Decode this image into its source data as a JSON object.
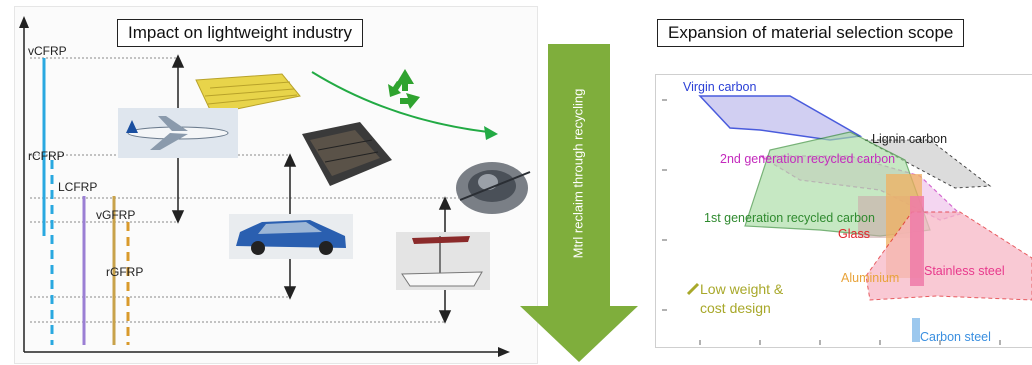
{
  "left_panel": {
    "title": "Impact on lightweight industry",
    "levels": [
      {
        "name": "vCFRP",
        "color": "#29a8e0"
      },
      {
        "name": "rCFRP",
        "color": "#29a8e0"
      },
      {
        "name": "LCFRP",
        "color": "#9b7fd4"
      },
      {
        "name": "vGFRP",
        "color": "#c8a24a"
      },
      {
        "name": "rGFRP",
        "color": "#d99a2b"
      }
    ],
    "images": [
      "airplane",
      "composite-panel",
      "battery-tray",
      "suv-car",
      "sailboat",
      "engine-part"
    ],
    "recycle_icon_color": "#2fa32f",
    "trend_arrow_color": "#22aa44"
  },
  "center_arrow": {
    "label": "Mtrl reclaim through recycling",
    "color": "#7fae3c"
  },
  "right_panel": {
    "title": "Expansion of material selection scope",
    "regions": [
      {
        "name": "Virgin carbon",
        "color": "#2a3fd6"
      },
      {
        "name": "Lignin carbon",
        "color": "#222222"
      },
      {
        "name": "2nd generation recycled carbon",
        "color": "#c42bbd"
      },
      {
        "name": "1st generation recycled carbon",
        "color": "#2f8a2f"
      },
      {
        "name": "Glass",
        "color": "#e0242a"
      },
      {
        "name": "Aluminium",
        "color": "#e8a33a"
      },
      {
        "name": "Stainless steel",
        "color": "#e8398c"
      },
      {
        "name": "Carbon steel",
        "color": "#3a8fe0"
      }
    ],
    "design_label_line1": "Low weight &",
    "design_label_line2": "cost design",
    "design_label_color": "#a8a82a"
  }
}
